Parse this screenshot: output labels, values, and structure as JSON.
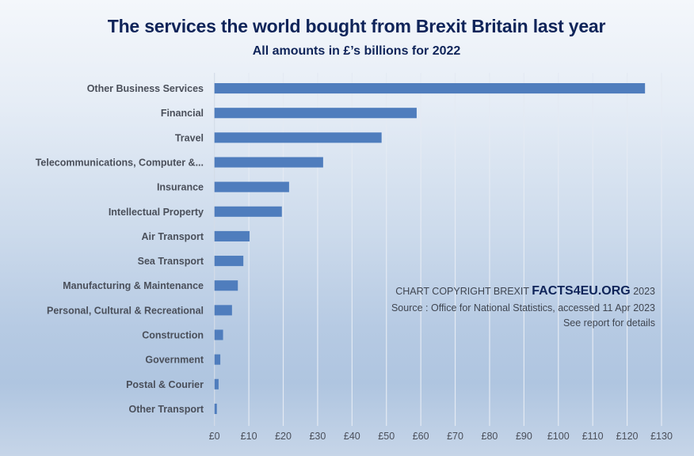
{
  "chart_data": {
    "type": "bar",
    "orientation": "horizontal",
    "title": "The services the world bought from Brexit Britain last year",
    "subtitle": "All amounts in £’s billions for 2022",
    "xlabel": "",
    "ylabel": "",
    "categories": [
      "Other Business Services",
      "Financial",
      "Travel",
      "Telecommunications, Computer &...",
      "Insurance",
      "Intellectual Property",
      "Air Transport",
      "Sea Transport",
      "Manufacturing & Maintenance",
      "Personal, Cultural & Recreational",
      "Construction",
      "Government",
      "Postal & Courier",
      "Other Transport"
    ],
    "values": [
      125.2,
      58.8,
      48.6,
      31.6,
      21.7,
      19.6,
      10.2,
      8.4,
      6.8,
      5.1,
      2.5,
      1.7,
      1.2,
      0.7
    ],
    "xlim": [
      0,
      130
    ],
    "xticks": [
      0,
      10,
      20,
      30,
      40,
      50,
      60,
      70,
      80,
      90,
      100,
      110,
      120,
      130
    ],
    "xtick_labels": [
      "£0",
      "£10",
      "£20",
      "£30",
      "£40",
      "£50",
      "£60",
      "£70",
      "£80",
      "£90",
      "£100",
      "£110",
      "£120",
      "£130"
    ],
    "grid": true,
    "legend": "none",
    "bar_color": "#4f7dbd"
  },
  "annotation": {
    "copyright_prefix": "CHART COPYRIGHT BREXIT ",
    "brand": "FACTS4EU.ORG",
    "copyright_year": " 2023",
    "source": "Source : Office for National Statistics, accessed 11 Apr 2023",
    "details": "See report for details"
  },
  "colors": {
    "title": "#0f2459",
    "gridline": "#e4eaf3",
    "text": "#4a4f5a"
  }
}
